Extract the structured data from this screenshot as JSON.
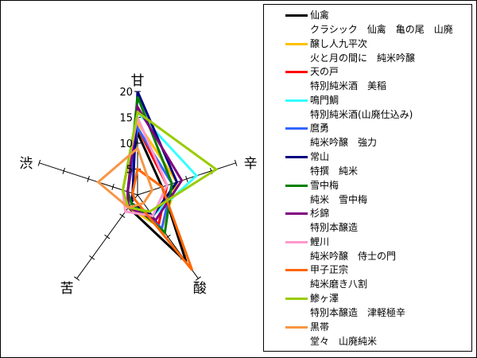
{
  "chart_data": {
    "type": "radar",
    "axes": [
      "甘",
      "辛",
      "酸",
      "苦",
      "渋"
    ],
    "rmax": 20,
    "rings": [
      5,
      10,
      15,
      20
    ],
    "ring_labels": [
      "5",
      "10",
      "15",
      "20"
    ],
    "series": [
      {
        "name": "仙禽",
        "product": "クラシック　仙禽　亀の尾　山廃",
        "color": "#000000",
        "values": [
          12,
          5,
          16,
          3,
          2
        ]
      },
      {
        "name": "醸し人九平次",
        "product": "火と月の間に　純米吟醸",
        "color": "#FFC000",
        "values": [
          14,
          8,
          8,
          3,
          3
        ]
      },
      {
        "name": "天の戸",
        "product": "特別純米酒　美稲",
        "color": "#FF0000",
        "values": [
          13,
          6,
          7,
          2,
          2
        ]
      },
      {
        "name": "鳴門鯛",
        "product": "特別純米酒(山廃仕込み)",
        "color": "#33FFFF",
        "values": [
          16,
          12,
          5,
          3,
          3
        ]
      },
      {
        "name": "麿勇",
        "product": "純米吟醸　強力",
        "color": "#3366FF",
        "values": [
          13,
          7,
          8,
          2,
          2
        ]
      },
      {
        "name": "常山",
        "product": "特撰　純米",
        "color": "#000080",
        "values": [
          20,
          8,
          5,
          2,
          1
        ]
      },
      {
        "name": "雪中梅",
        "product": "純米　雪中梅",
        "color": "#008000",
        "values": [
          19,
          7,
          9,
          2,
          2
        ]
      },
      {
        "name": "杉錦",
        "product": "特別本醸造",
        "color": "#800080",
        "values": [
          17,
          9,
          6,
          3,
          2
        ]
      },
      {
        "name": "鯉川",
        "product": "純米吟醸　侍士の門",
        "color": "#FF99CC",
        "values": [
          15,
          6,
          5,
          4,
          3
        ]
      },
      {
        "name": "甲子正宗",
        "product": "純米磨き八割",
        "color": "#FF6600",
        "values": [
          5,
          5,
          18,
          1,
          1
        ]
      },
      {
        "name": "鯵ヶ澤",
        "product": "特別本醸造　津軽極辛",
        "color": "#99CC00",
        "values": [
          16,
          16,
          4,
          3,
          3
        ]
      },
      {
        "name": "黒帯",
        "product": "堂々　山廃純米",
        "color": "#F79646",
        "values": [
          9,
          3,
          2,
          3,
          8
        ]
      }
    ]
  }
}
